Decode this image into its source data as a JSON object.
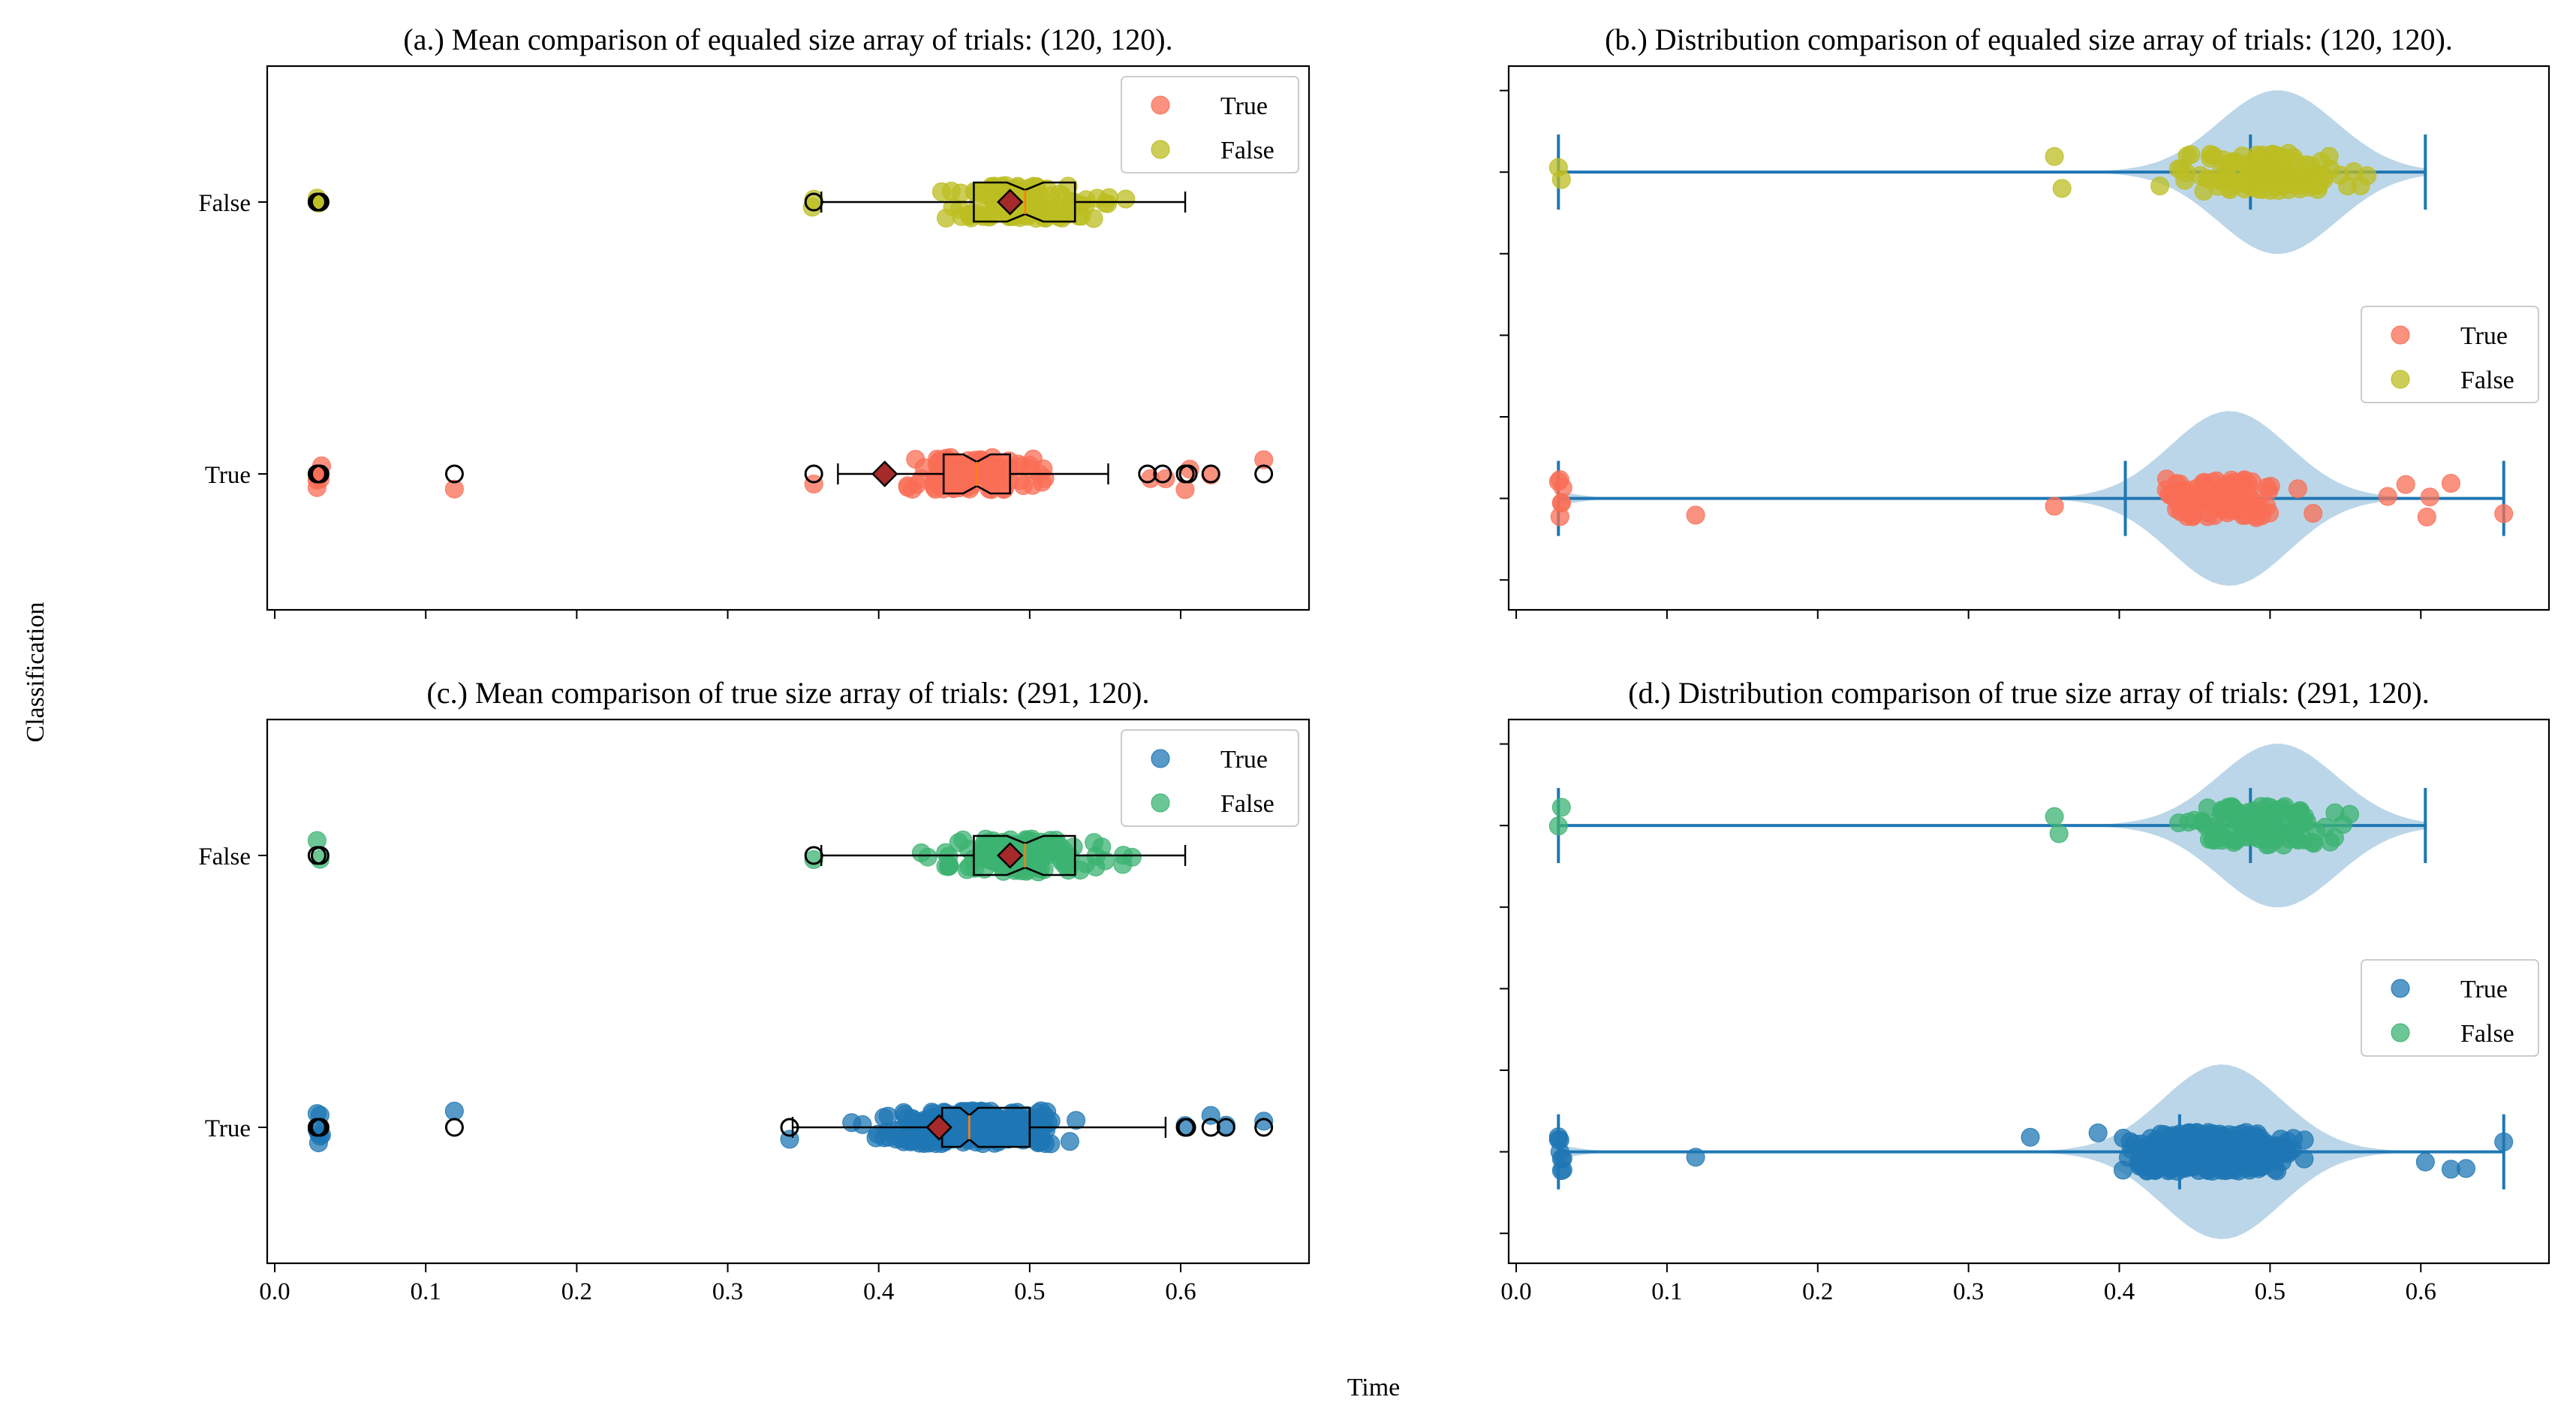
{
  "figure": {
    "xlabel": "Time",
    "ylabel": "Classification"
  },
  "chart_data": [
    {
      "type": "box",
      "title": "(a.) Mean comparison of equaled size array of trials: (120, 120).",
      "xlim": [
        -0.005,
        0.685
      ],
      "x_ticks": [
        "0.0",
        "0.1",
        "0.2",
        "0.3",
        "0.4",
        "0.5",
        "0.6"
      ],
      "show_x_tick_labels": false,
      "categories": [
        "True",
        "False"
      ],
      "legend": {
        "position": "top-right",
        "entries": [
          "True",
          "False"
        ]
      },
      "series": [
        {
          "name": "True",
          "color": "#FA6E56",
          "box": {
            "q1": 0.443,
            "median": 0.465,
            "q3": 0.487,
            "notch_low": 0.456,
            "notch_high": 0.474,
            "whisker_low": 0.373,
            "whisker_high": 0.552,
            "mean": 0.404
          },
          "fliers": [
            0.028,
            0.029,
            0.03,
            0.119,
            0.357,
            0.578,
            0.588,
            0.603,
            0.605,
            0.62,
            0.655
          ],
          "points": {
            "outliers": [
              0.028,
              0.029,
              0.03,
              0.031,
              0.028,
              0.029,
              0.119,
              0.357,
              0.58,
              0.59,
              0.603,
              0.606,
              0.62,
              0.655
            ],
            "range": [
              0.358,
              0.56
            ],
            "count": 105
          }
        },
        {
          "name": "False",
          "color": "#BCBD22",
          "box": {
            "q1": 0.463,
            "median": 0.497,
            "q3": 0.53,
            "notch_low": 0.485,
            "notch_high": 0.509,
            "whisker_low": 0.362,
            "whisker_high": 0.603,
            "mean": 0.487
          },
          "fliers": [
            0.028,
            0.029,
            0.03,
            0.357
          ],
          "points": {
            "outliers": [
              0.028,
              0.029,
              0.03,
              0.357,
              0.356
            ],
            "range": [
              0.36,
              0.602
            ],
            "count": 114
          }
        }
      ]
    },
    {
      "type": "violin",
      "title": "(b.) Distribution comparison of equaled size array of trials: (120, 120).",
      "xlim": [
        -0.005,
        0.685
      ],
      "x_ticks": [
        "0.0",
        "0.1",
        "0.2",
        "0.3",
        "0.4",
        "0.5",
        "0.6"
      ],
      "show_x_tick_labels": false,
      "categories": [
        "True",
        "False"
      ],
      "legend": {
        "position": "center-right",
        "entries": [
          "True",
          "False"
        ]
      },
      "series": [
        {
          "name": "True",
          "color": "#FA6E56",
          "min": 0.028,
          "max": 0.655,
          "mean": 0.404,
          "median": 0.465,
          "points": {
            "outliers": [
              0.028,
              0.029,
              0.03,
              0.031,
              0.029,
              0.03,
              0.119,
              0.357,
              0.578,
              0.59,
              0.604,
              0.606,
              0.62,
              0.655
            ],
            "range": [
              0.36,
              0.56
            ],
            "count": 105
          }
        },
        {
          "name": "False",
          "color": "#BCBD22",
          "min": 0.028,
          "max": 0.603,
          "mean": 0.487,
          "median": 0.497,
          "points": {
            "outliers": [
              0.028,
              0.03,
              0.357,
              0.362
            ],
            "range": [
              0.37,
              0.602
            ],
            "count": 115
          }
        }
      ]
    },
    {
      "type": "box",
      "title": "(c.) Mean comparison of true size array of trials: (291, 120).",
      "xlim": [
        -0.005,
        0.685
      ],
      "x_ticks": [
        "0.0",
        "0.1",
        "0.2",
        "0.3",
        "0.4",
        "0.5",
        "0.6"
      ],
      "show_x_tick_labels": true,
      "categories": [
        "True",
        "False"
      ],
      "legend": {
        "position": "top-right",
        "entries": [
          "True",
          "False"
        ]
      },
      "series": [
        {
          "name": "True",
          "color": "#1F77B4",
          "box": {
            "q1": 0.442,
            "median": 0.46,
            "q3": 0.5,
            "notch_low": 0.454,
            "notch_high": 0.466,
            "whisker_low": 0.343,
            "whisker_high": 0.59,
            "mean": 0.44
          },
          "fliers": [
            0.028,
            0.029,
            0.03,
            0.119,
            0.341,
            0.603,
            0.604,
            0.62,
            0.63,
            0.655
          ],
          "points": {
            "outliers": [
              0.028,
              0.029,
              0.03,
              0.031,
              0.028,
              0.029,
              0.03,
              0.119,
              0.341,
              0.603,
              0.62,
              0.63,
              0.655
            ],
            "range": [
              0.343,
              0.59
            ],
            "count": 278
          }
        },
        {
          "name": "False",
          "color": "#3CB371",
          "box": {
            "q1": 0.463,
            "median": 0.497,
            "q3": 0.53,
            "notch_low": 0.485,
            "notch_high": 0.509,
            "whisker_low": 0.362,
            "whisker_high": 0.603,
            "mean": 0.487
          },
          "fliers": [
            0.028,
            0.03,
            0.357
          ],
          "points": {
            "outliers": [
              0.028,
              0.03,
              0.357
            ],
            "range": [
              0.36,
              0.603
            ],
            "count": 116
          }
        }
      ]
    },
    {
      "type": "violin",
      "title": "(d.) Distribution comparison of true size array of trials: (291, 120).",
      "xlim": [
        -0.005,
        0.685
      ],
      "x_ticks": [
        "0.0",
        "0.1",
        "0.2",
        "0.3",
        "0.4",
        "0.5",
        "0.6"
      ],
      "show_x_tick_labels": true,
      "categories": [
        "True",
        "False"
      ],
      "legend": {
        "position": "center-right",
        "entries": [
          "True",
          "False"
        ]
      },
      "series": [
        {
          "name": "True",
          "color": "#1F77B4",
          "min": 0.028,
          "max": 0.655,
          "mean": 0.44,
          "median": 0.46,
          "points": {
            "outliers": [
              0.028,
              0.029,
              0.03,
              0.031,
              0.028,
              0.029,
              0.03,
              0.031,
              0.119,
              0.341,
              0.603,
              0.62,
              0.63,
              0.655
            ],
            "range": [
              0.345,
              0.59
            ],
            "count": 278
          }
        },
        {
          "name": "False",
          "color": "#3CB371",
          "min": 0.028,
          "max": 0.603,
          "mean": 0.487,
          "median": 0.497,
          "points": {
            "outliers": [
              0.028,
              0.03,
              0.357,
              0.36
            ],
            "range": [
              0.37,
              0.603
            ],
            "count": 116
          }
        }
      ]
    }
  ]
}
